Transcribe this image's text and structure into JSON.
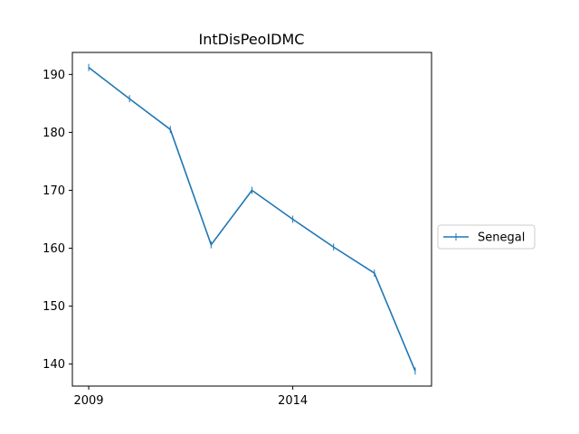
{
  "chart_data": {
    "type": "line",
    "title": "IntDisPeoIDMC",
    "xlabel": "",
    "ylabel": "",
    "x": [
      2009,
      2010,
      2011,
      2012,
      2013,
      2014,
      2015,
      2016,
      2017
    ],
    "series": [
      {
        "name": "Senegal",
        "values": [
          191.2,
          185.8,
          180.5,
          160.6,
          170.0,
          165.0,
          160.2,
          155.7,
          138.8
        ],
        "color": "#1f77b4",
        "marker": "vertical-line"
      }
    ],
    "xticks": [
      2009,
      2014
    ],
    "xtick_labels": [
      "2009",
      "2014"
    ],
    "yticks": [
      140,
      150,
      160,
      170,
      180,
      190
    ],
    "ytick_labels": [
      "140",
      "150",
      "160",
      "170",
      "180",
      "190"
    ],
    "xlim": [
      2008.6,
      2017.4
    ],
    "ylim": [
      136.2,
      193.8
    ],
    "grid": false,
    "legend_position": "right-outside"
  }
}
